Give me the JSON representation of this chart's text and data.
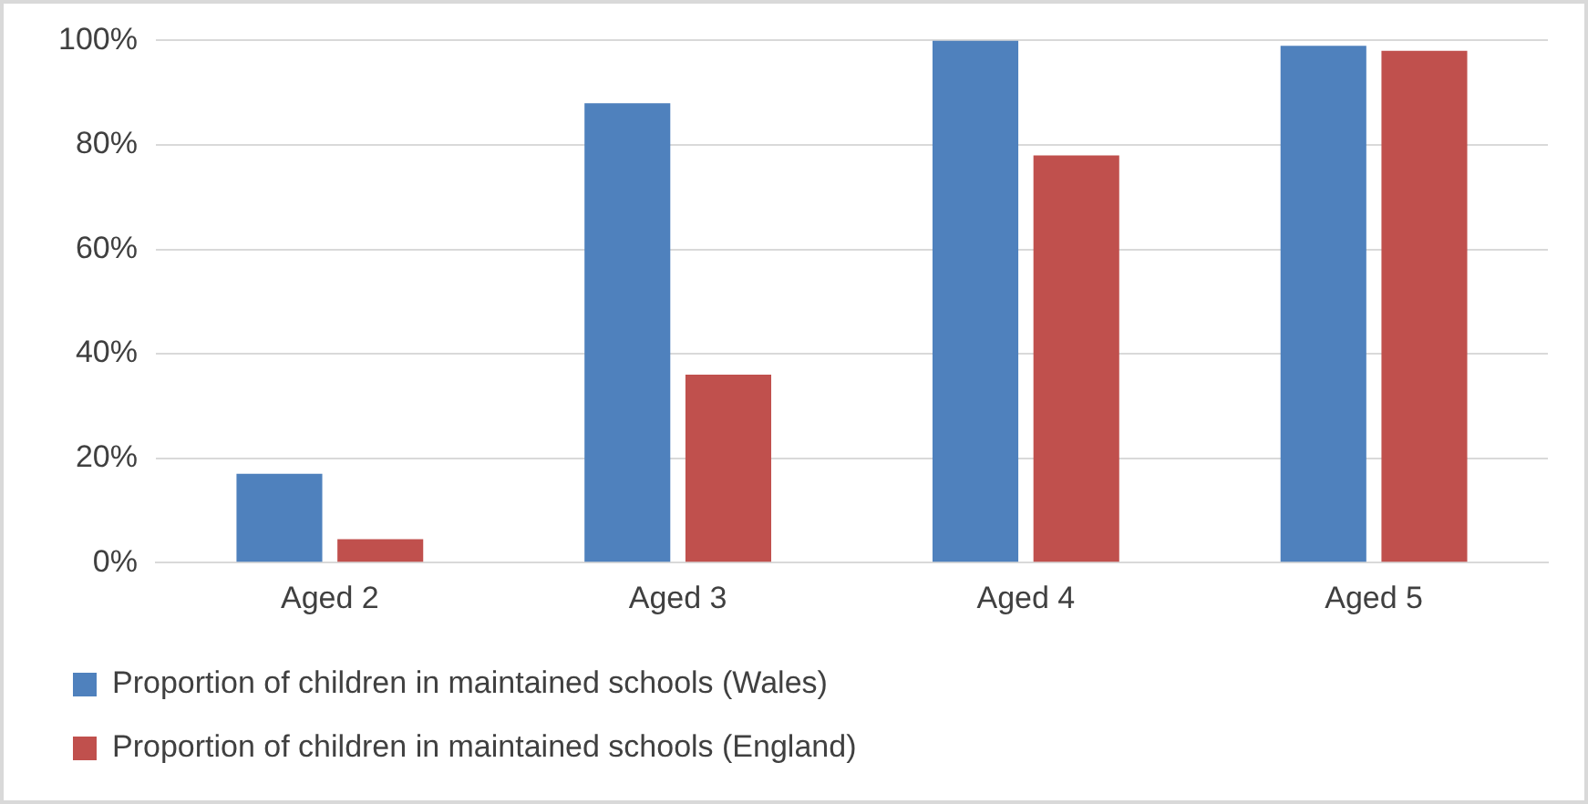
{
  "chart_data": {
    "type": "bar",
    "categories": [
      "Aged 2",
      "Aged 3",
      "Aged 4",
      "Aged 5"
    ],
    "series": [
      {
        "name": "Proportion of children in maintained schools (Wales)",
        "color": "#4f81bd",
        "values": [
          17,
          88,
          100,
          99
        ]
      },
      {
        "name": "Proportion of children in maintained schools (England)",
        "color": "#c0504d",
        "values": [
          4.5,
          36,
          78,
          98
        ]
      }
    ],
    "ylim": [
      0,
      100
    ],
    "yticks": [
      {
        "value": 0,
        "label": "0%"
      },
      {
        "value": 20,
        "label": "20%"
      },
      {
        "value": 40,
        "label": "40%"
      },
      {
        "value": 60,
        "label": "60%"
      },
      {
        "value": 80,
        "label": "80%"
      },
      {
        "value": 100,
        "label": "100%"
      }
    ],
    "grid": "y",
    "legend": "bottom"
  }
}
